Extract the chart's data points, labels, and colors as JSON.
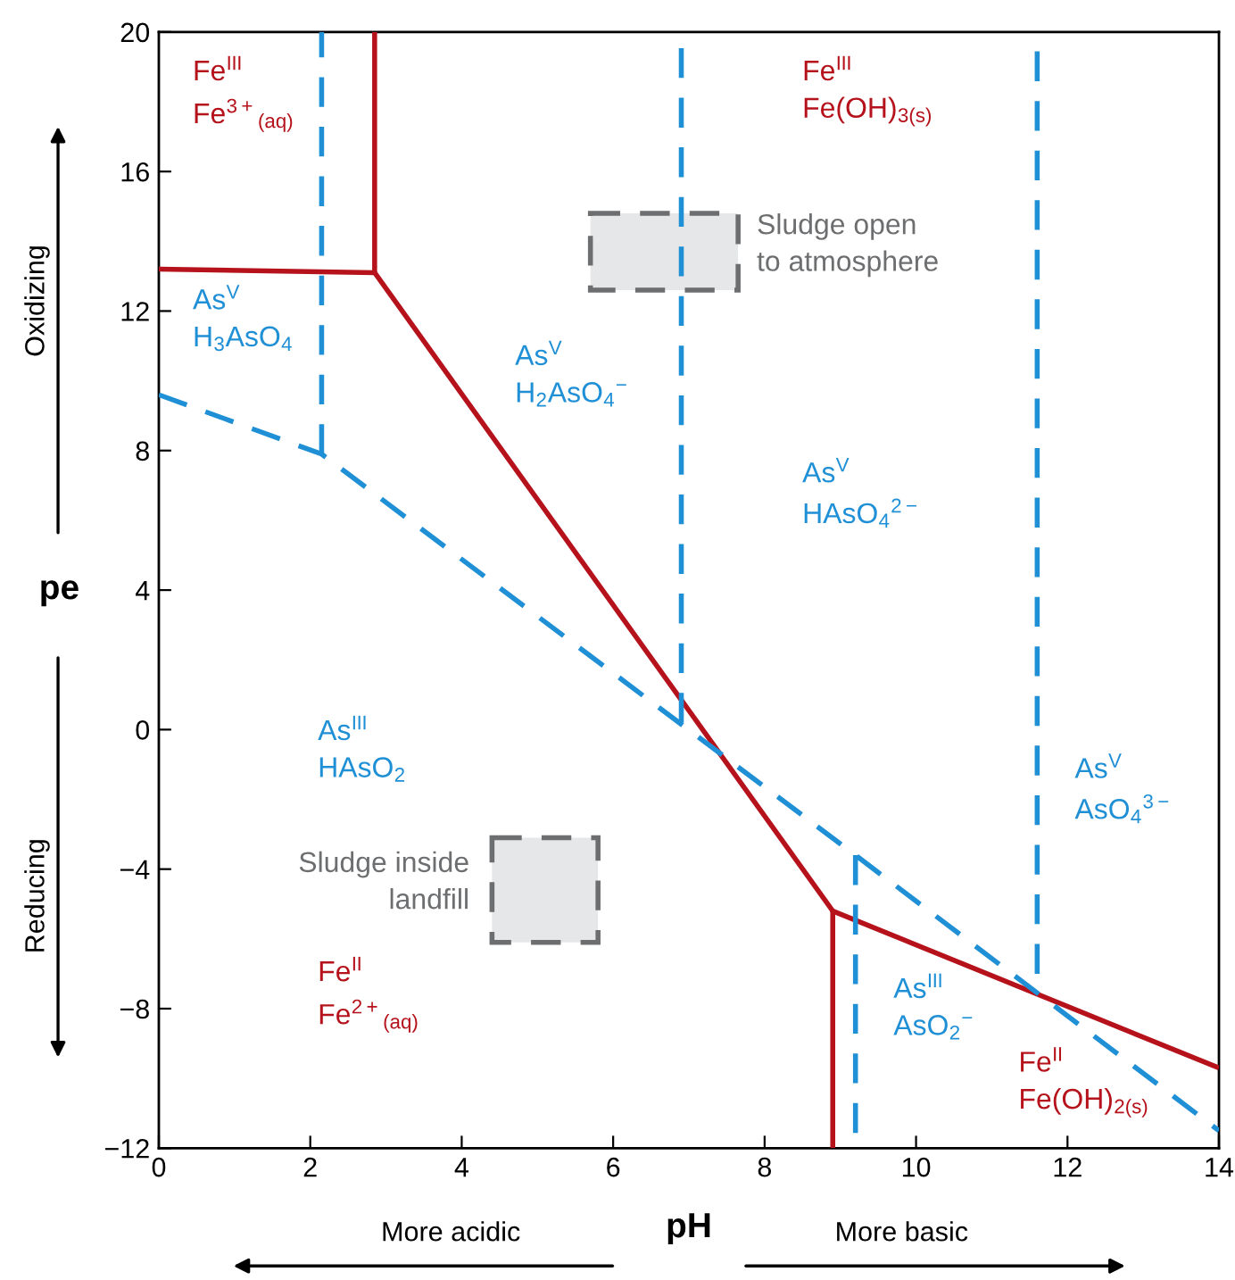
{
  "chart_data": {
    "type": "line",
    "xlabel": "pH",
    "ylabel": "pe",
    "xlim": [
      0,
      14
    ],
    "ylim": [
      -12,
      20
    ],
    "xticks": [
      0,
      2,
      4,
      6,
      8,
      10,
      12,
      14
    ],
    "yticks": [
      -12,
      -8,
      -4,
      0,
      4,
      8,
      12,
      16,
      20
    ],
    "grid": false,
    "legend": false,
    "marker": "none",
    "series": [
      {
        "color": "#b5121b",
        "line_style": "solid",
        "x": [
          0,
          2.85
        ],
        "values": [
          13.2,
          13.1
        ]
      },
      {
        "color": "#b5121b",
        "line_style": "solid",
        "x": [
          2.85,
          2.85
        ],
        "values": [
          20,
          13.1
        ]
      },
      {
        "color": "#b5121b",
        "line_style": "solid",
        "x": [
          2.85,
          8.9
        ],
        "values": [
          13.1,
          -5.2
        ]
      },
      {
        "color": "#b5121b",
        "line_style": "solid",
        "x": [
          8.9,
          8.9
        ],
        "values": [
          -5.2,
          -12
        ]
      },
      {
        "color": "#b5121b",
        "line_style": "solid",
        "x": [
          8.9,
          14
        ],
        "values": [
          -5.2,
          -9.7
        ]
      },
      {
        "color": "#1f8fd6",
        "line_style": "dashed",
        "x": [
          0,
          2.15,
          9.2,
          14
        ],
        "values": [
          9.6,
          7.9,
          -3.6,
          -11.5
        ]
      },
      {
        "color": "#1f8fd6",
        "line_style": "dashed",
        "x": [
          2.15,
          2.15
        ],
        "values": [
          20,
          7.9
        ]
      },
      {
        "color": "#1f8fd6",
        "line_style": "dashed",
        "x": [
          6.9,
          6.9
        ],
        "values": [
          20,
          0.2
        ]
      },
      {
        "color": "#1f8fd6",
        "line_style": "dashed",
        "x": [
          9.2,
          9.2
        ],
        "values": [
          -3.6,
          -12
        ]
      },
      {
        "color": "#1f8fd6",
        "line_style": "dashed",
        "x": [
          11.6,
          11.6
        ],
        "values": [
          20,
          -7.0
        ]
      },
      {
        "type": "area",
        "color": "#e6e7e8",
        "line_style": "dashed",
        "x": [
          5.7,
          7.65,
          7.65,
          5.7,
          5.7
        ],
        "values": [
          14.8,
          14.8,
          12.6,
          12.6,
          14.8
        ]
      },
      {
        "type": "area",
        "color": "#e6e7e8",
        "line_style": "dashed",
        "x": [
          4.4,
          5.8,
          5.8,
          4.4,
          4.4
        ],
        "values": [
          -3.1,
          -3.1,
          -6.1,
          -6.1,
          -3.1
        ]
      }
    ],
    "annotations": [
      "Fe$^{III}$\nFe$^{3+}$$_{(aq)}$",
      "Fe$^{III}$\nFe(OH)$_{3(s)}$",
      "As$^{V}$\nH$_{3}$AsO$_{4}$",
      "As$^{V}$\nH$_{2}$AsO$_{4}$$^{−}$",
      "As$^{V}$\nHAsO$_{4}$$^{2−}$",
      "As$^{III}$\nHAsO$_{2}$",
      "As$^{V}$\nAsO$_{4}$$^{3−}$",
      "Fe$^{II}$\nFe$^{2+}$$_{(aq)}$",
      "As$^{III}$\nAsO$_{2}$$^{−}$",
      "Fe$^{II}$\nFe(OH)$_{2(s)}$",
      "Sludge open\nto atmosphere",
      "Sludge inside\nlandfill",
      "Oxidizing",
      "Reducing",
      "More acidic",
      "More basic"
    ]
  }
}
